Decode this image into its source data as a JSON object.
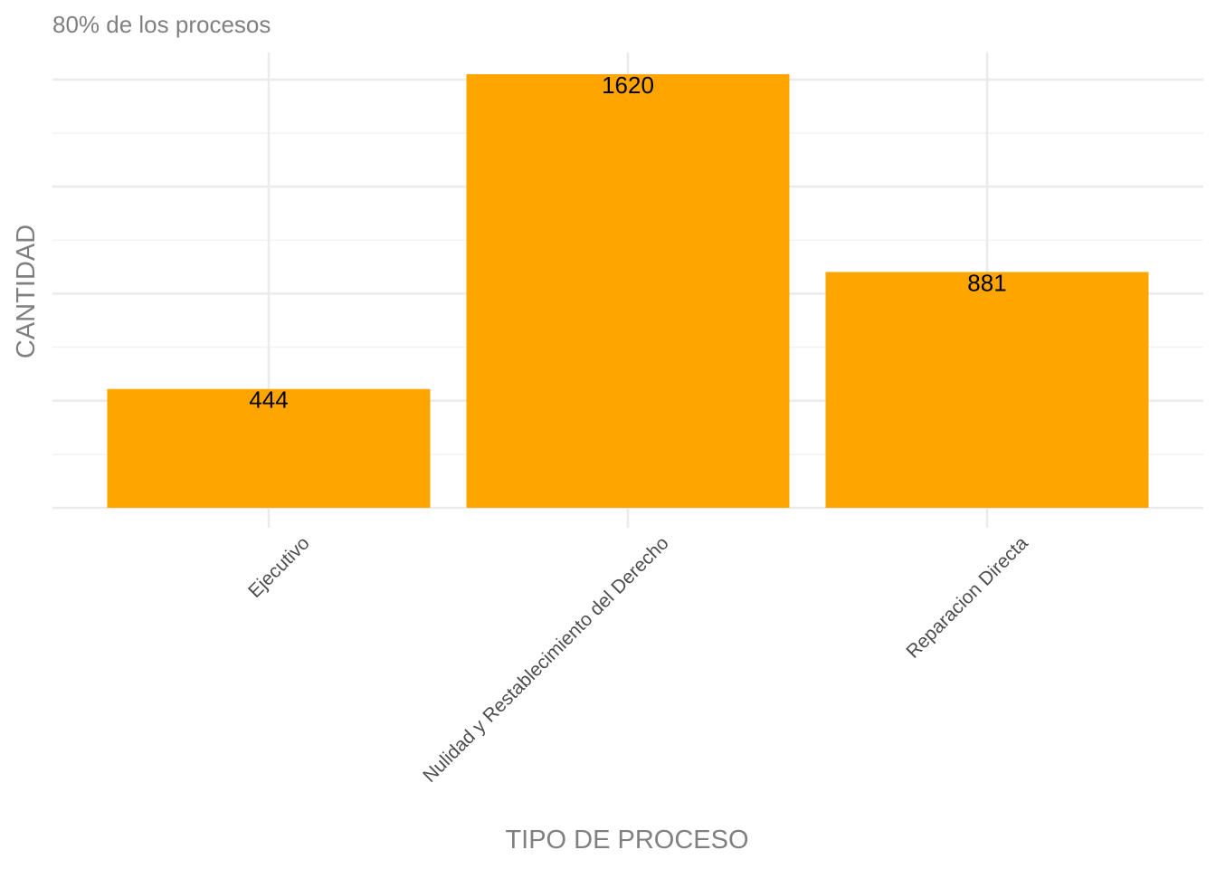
{
  "chart_data": {
    "type": "bar",
    "subtitle": "80% de los procesos",
    "xlabel": "TIPO DE PROCESO",
    "ylabel": "CANTIDAD",
    "categories": [
      "Ejecutivo",
      "Nulidad y Restablecimiento del Derecho",
      "Reparacion Directa"
    ],
    "values": [
      444,
      1620,
      881
    ],
    "data_labels": [
      "444",
      "1620",
      "881"
    ],
    "ylim": [
      0,
      1700
    ],
    "grid": true,
    "y_tick_labels_shown": false,
    "x_tick_label_rotation": "45 degrees",
    "legend": "none"
  },
  "colors": {
    "bar": "#FFA500",
    "grid_major": "#EBEBEB",
    "grid_minor": "#F2F2F2",
    "axis_text": "#4D4D4D",
    "title_text": "#808080",
    "data_label": "#000000"
  }
}
